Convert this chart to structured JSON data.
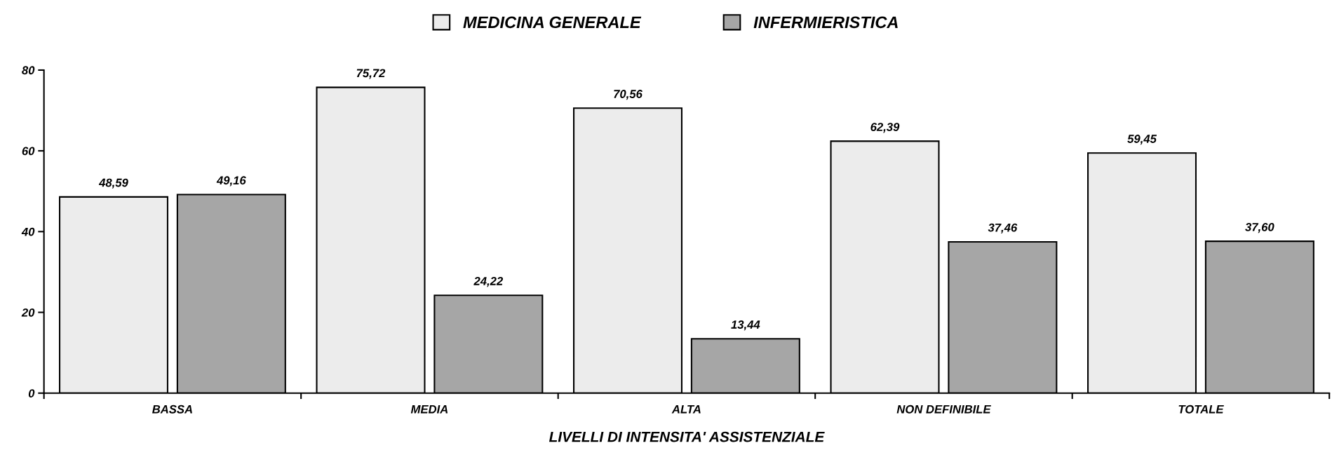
{
  "chart_data": {
    "type": "bar",
    "xlabel": "LIVELLI DI INTENSITA' ASSISTENZIALE",
    "categories": [
      "BASSA",
      "MEDIA",
      "ALTA",
      "NON DEFINIBILE",
      "TOTALE"
    ],
    "series": [
      {
        "name": "MEDICINA GENERALE",
        "color": "#ececec",
        "values": [
          48.59,
          75.72,
          70.56,
          62.39,
          59.45
        ],
        "value_labels": [
          "48,59",
          "75,72",
          "70,56",
          "62,39",
          "59,45"
        ]
      },
      {
        "name": "INFERMIERISTICA",
        "color": "#a6a6a6",
        "values": [
          49.16,
          24.22,
          13.44,
          37.46,
          37.6
        ],
        "value_labels": [
          "49,16",
          "24,22",
          "13,44",
          "37,46",
          "37,60"
        ]
      }
    ],
    "ylim": [
      0,
      80
    ],
    "yticks": [
      0,
      20,
      40,
      60,
      80
    ],
    "grid": false,
    "legend": "top"
  }
}
